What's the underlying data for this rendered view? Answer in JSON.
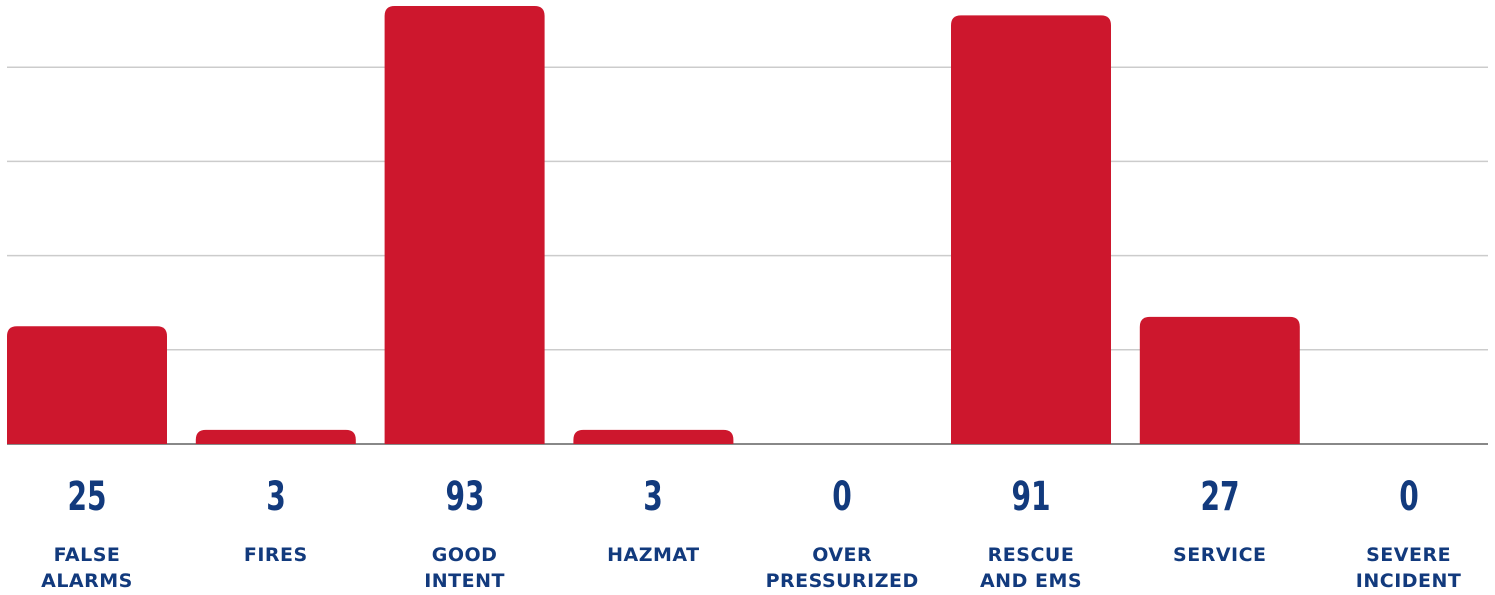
{
  "chart_data": {
    "type": "bar",
    "categories": [
      "FALSE\nALARMS",
      "FIRES",
      "GOOD\nINTENT",
      "HAZMAT",
      "OVER\nPRESSURIZED",
      "RESCUE\nAND EMS",
      "SERVICE",
      "SEVERE\nINCIDENT"
    ],
    "values": [
      25,
      3,
      93,
      3,
      0,
      91,
      27,
      0
    ],
    "color": "#cd172d",
    "ylim": [
      0,
      93
    ],
    "yticks": [
      0,
      20,
      40,
      60,
      80
    ],
    "grid": true
  }
}
